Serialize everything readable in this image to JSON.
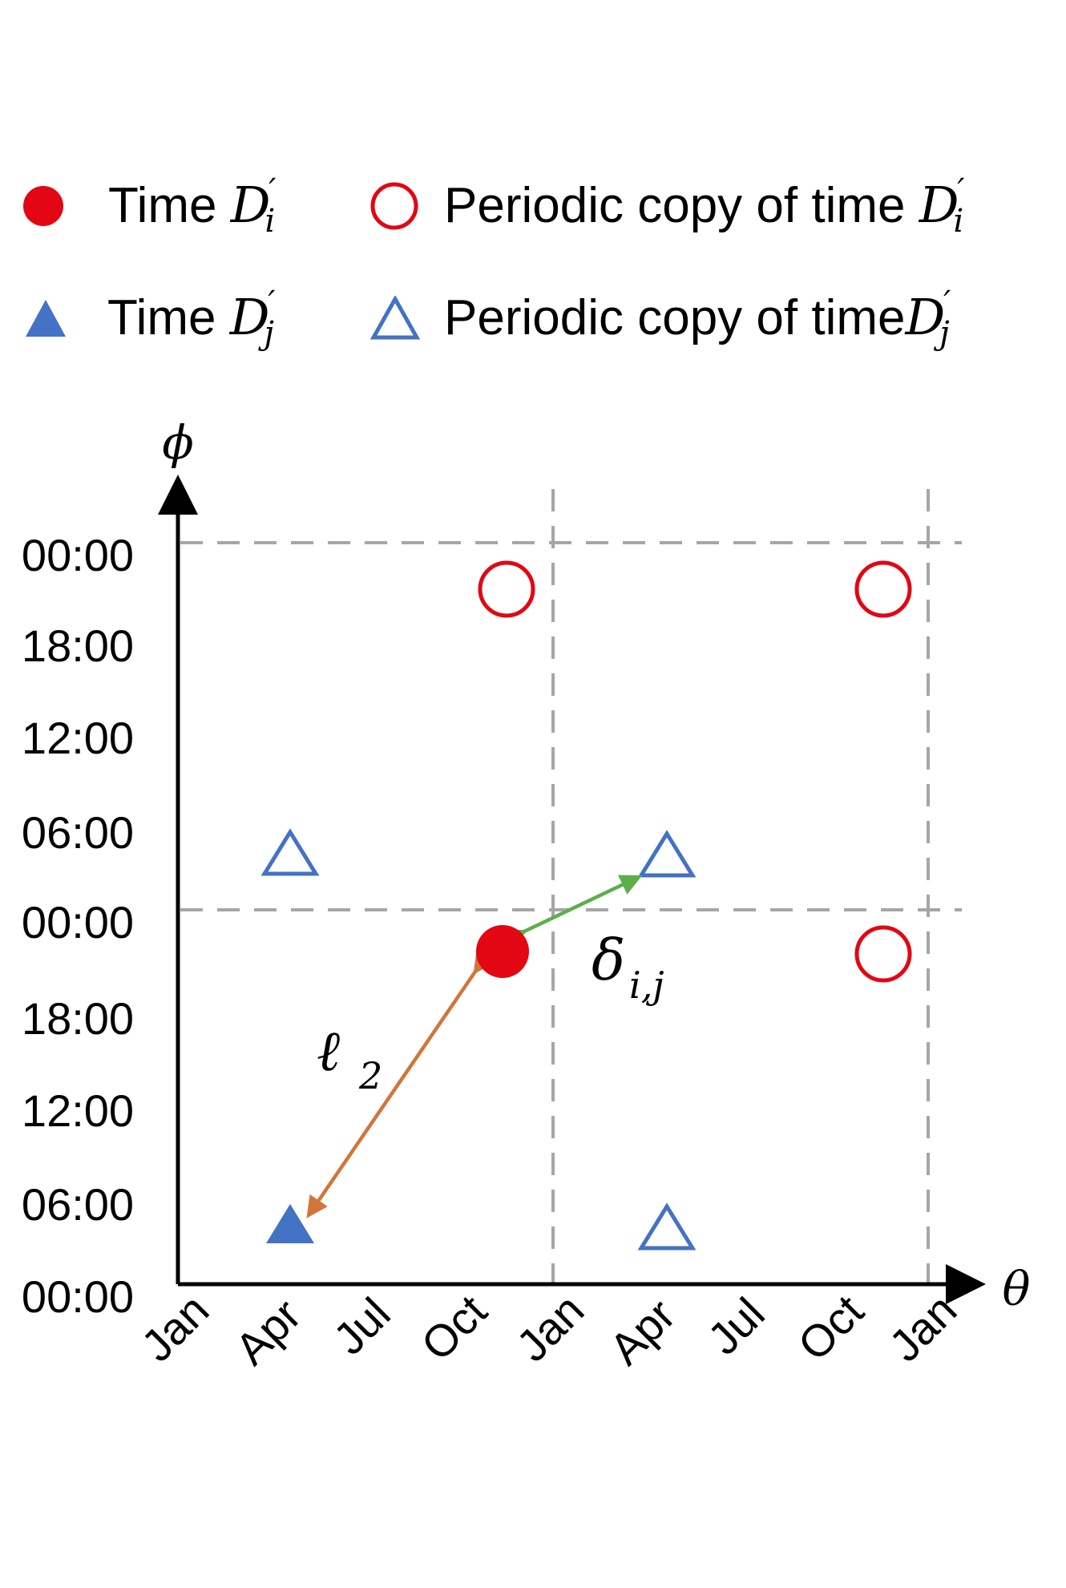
{
  "legend": {
    "items": [
      {
        "marker": "filled-circle-icon",
        "color": "#e30613",
        "prefix": "Time ",
        "symbol": "D",
        "subscript": "i",
        "prime": "′"
      },
      {
        "marker": "hollow-circle-icon",
        "color": "#e30613",
        "prefix": "Periodic copy of time ",
        "symbol": "D",
        "subscript": "i",
        "prime": "′"
      },
      {
        "marker": "filled-triangle-icon",
        "color": "#4472c4",
        "prefix": "Time ",
        "symbol": "D",
        "subscript": "j",
        "prime": "′"
      },
      {
        "marker": "hollow-triangle-icon",
        "color": "#4472c4",
        "prefix": "Periodic copy of time",
        "symbol": "D",
        "subscript": "j",
        "prime": "′"
      }
    ]
  },
  "axes": {
    "x_name": "θ",
    "y_name": "ϕ",
    "x_ticks": [
      "Jan",
      "Apr",
      "Jul",
      "Oct",
      "Jan",
      "Apr",
      "Jul",
      "Oct",
      "Jan"
    ],
    "y_ticks": [
      "00:00",
      "06:00",
      "12:00",
      "18:00",
      "00:00",
      "06:00",
      "12:00",
      "18:00",
      "00:00"
    ]
  },
  "annotations": {
    "l2_main": "ℓ",
    "l2_sub": "2",
    "delta_main": "δ",
    "delta_sub": "i,j"
  },
  "colors": {
    "red": "#e30613",
    "blue": "#4472c4",
    "orange_arrow": "#d0763a",
    "green_arrow": "#5cb04a",
    "grid": "#a6a6a6"
  }
}
